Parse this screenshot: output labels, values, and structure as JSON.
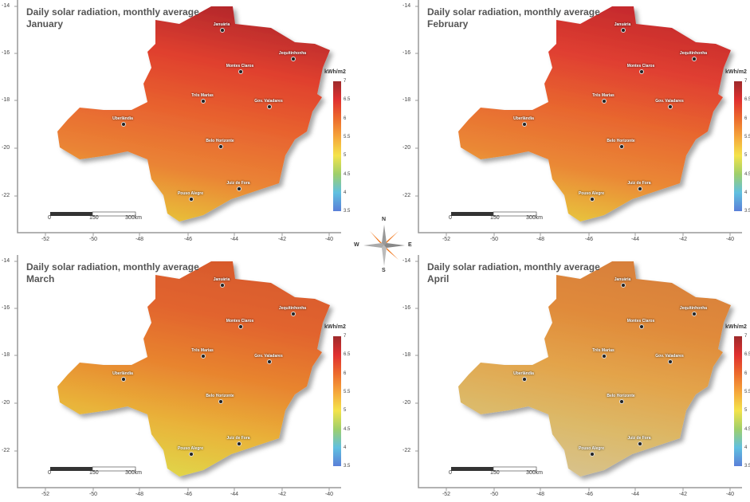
{
  "title": "Daily solar radiation, monthly average",
  "panels": [
    {
      "month": "January",
      "colors": [
        "#b5282c",
        "#e0402e",
        "#e8632f",
        "#ea8435",
        "#e8c43a"
      ]
    },
    {
      "month": "February",
      "colors": [
        "#c52a2e",
        "#e03f30",
        "#e8672f",
        "#ea8836",
        "#e8c83d"
      ]
    },
    {
      "month": "March",
      "colors": [
        "#d85a2c",
        "#e2652f",
        "#e8852f",
        "#e9b33a",
        "#e0d84a"
      ]
    },
    {
      "month": "April",
      "colors": [
        "#d8803a",
        "#e08a3a",
        "#e3a34a",
        "#dcb968",
        "#d7c38f"
      ]
    }
  ],
  "colorbar": {
    "unit": "kWh/m2",
    "labels": [
      "7",
      "6.5",
      "6",
      "5.5",
      "5",
      "4.5",
      "4",
      "3.5"
    ],
    "colors": [
      "#9e2a2b",
      "#e03030",
      "#ec6a2c",
      "#f5a63a",
      "#f4e34a",
      "#9fcf6a",
      "#60c0e0",
      "#5a7fd8"
    ]
  },
  "x_ticks": [
    "-52",
    "-50",
    "-48",
    "-46",
    "-44",
    "-42",
    "-40"
  ],
  "y_ticks": [
    "-14",
    "-16",
    "-18",
    "-20",
    "-22"
  ],
  "scalebar": [
    "0",
    "150",
    "300km"
  ],
  "cities": [
    {
      "name": "Januária"
    },
    {
      "name": "Jequitinhonha"
    },
    {
      "name": "Montes Claros"
    },
    {
      "name": "Três Marias"
    },
    {
      "name": "Gov. Valadares"
    },
    {
      "name": "Uberlândia"
    },
    {
      "name": "Belo Horizonte"
    },
    {
      "name": "Juiz de Fora"
    },
    {
      "name": "Pouso Alegre"
    }
  ],
  "compass": {
    "n": "N",
    "s": "S",
    "e": "E",
    "w": "W"
  }
}
